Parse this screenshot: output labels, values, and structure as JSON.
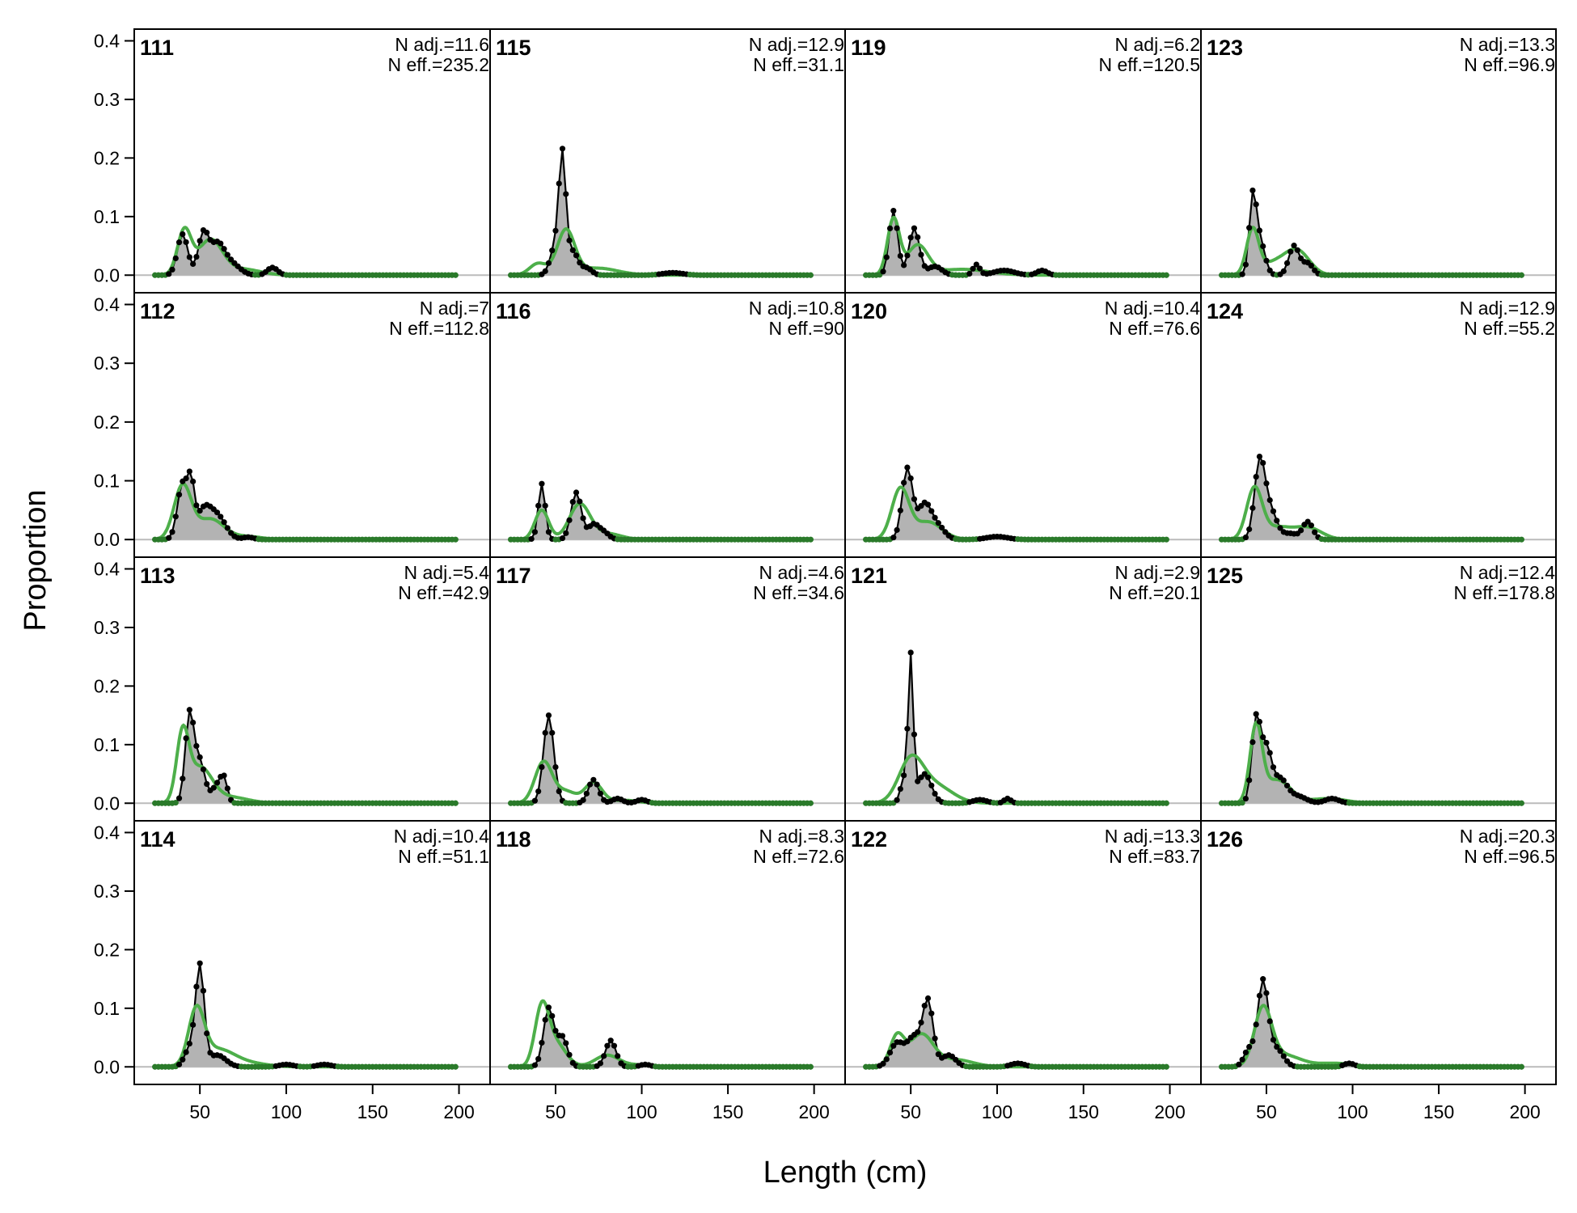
{
  "chart_data": {
    "type": "area",
    "xlabel": "Length (cm)",
    "ylabel": "Proportion",
    "xlim": [
      12,
      218
    ],
    "ylim": [
      -0.03,
      0.42
    ],
    "xticks": [
      50,
      100,
      150,
      200
    ],
    "yticks": [
      0.0,
      0.1,
      0.2,
      0.3,
      0.4
    ],
    "ytick_labels": [
      "0.0",
      "0.1",
      "0.2",
      "0.3",
      "0.4"
    ],
    "xtick_labels": [
      "50",
      "100",
      "150",
      "200"
    ],
    "layout": "4 rows x 4 columns, filled column-wise",
    "colors": {
      "observed_fill": "#b3b3b3",
      "observed_line": "#000000",
      "expected_line": "#4daf4a",
      "zero_line": "#bbbbbb",
      "green_points": "#2a7a2a"
    },
    "length_bins": [
      24,
      26,
      28,
      30,
      32,
      34,
      36,
      38,
      40,
      42,
      44,
      46,
      48,
      50,
      52,
      54,
      56,
      58,
      60,
      62,
      64,
      66,
      68,
      70,
      72,
      74,
      76,
      78,
      80,
      82,
      84,
      86,
      88,
      90,
      92,
      94,
      96,
      98,
      100,
      102,
      104,
      106,
      108,
      110,
      112,
      114,
      116,
      118,
      120,
      122,
      124,
      126,
      128,
      130,
      132,
      134,
      136,
      138,
      140,
      142,
      144,
      146,
      148,
      150,
      152,
      154,
      156,
      158,
      160,
      162,
      164,
      166,
      168,
      170,
      172,
      174,
      176,
      178,
      180,
      182,
      184,
      186,
      188,
      190,
      192,
      194,
      196,
      198
    ],
    "panels": [
      {
        "label": "111",
        "n_adj": "N adj.=11.6",
        "n_eff": "N eff.=235.2",
        "obs_peaks": [
          [
            40,
            0.07,
            3
          ],
          [
            52,
            0.07,
            3
          ],
          [
            60,
            0.05,
            4
          ],
          [
            68,
            0.02,
            5
          ],
          [
            92,
            0.013,
            3
          ]
        ],
        "exp_peaks": [
          [
            41,
            0.075,
            4
          ],
          [
            56,
            0.06,
            7
          ],
          [
            75,
            0.01,
            10
          ]
        ]
      },
      {
        "label": "112",
        "n_adj": "N adj.=7",
        "n_eff": "N eff.=112.8",
        "obs_peaks": [
          [
            40,
            0.095,
            3
          ],
          [
            45,
            0.08,
            2
          ],
          [
            52,
            0.045,
            4
          ],
          [
            60,
            0.04,
            5
          ],
          [
            78,
            0.004,
            3
          ]
        ],
        "exp_peaks": [
          [
            40,
            0.09,
            5
          ],
          [
            56,
            0.035,
            8
          ],
          [
            78,
            0.005,
            8
          ]
        ]
      },
      {
        "label": "113",
        "n_adj": "N adj.=5.4",
        "n_eff": "N eff.=42.9",
        "obs_peaks": [
          [
            44,
            0.15,
            2.5
          ],
          [
            50,
            0.07,
            3
          ],
          [
            60,
            0.03,
            3
          ],
          [
            64,
            0.035,
            2
          ]
        ],
        "exp_peaks": [
          [
            40,
            0.11,
            3.5
          ],
          [
            50,
            0.06,
            7
          ],
          [
            68,
            0.01,
            10
          ]
        ]
      },
      {
        "label": "114",
        "n_adj": "N adj.=10.4",
        "n_eff": "N eff.=51.1",
        "obs_peaks": [
          [
            50,
            0.17,
            2.5
          ],
          [
            44,
            0.03,
            3
          ],
          [
            60,
            0.02,
            5
          ],
          [
            100,
            0.004,
            4
          ],
          [
            122,
            0.004,
            4
          ]
        ],
        "exp_peaks": [
          [
            48,
            0.09,
            4.5
          ],
          [
            60,
            0.03,
            10
          ],
          [
            80,
            0.005,
            10
          ]
        ]
      },
      {
        "label": "115",
        "n_adj": "N adj.=12.9",
        "n_eff": "N eff.=31.1",
        "obs_peaks": [
          [
            54,
            0.19,
            2
          ],
          [
            50,
            0.05,
            3
          ],
          [
            60,
            0.04,
            3
          ],
          [
            68,
            0.012,
            3
          ],
          [
            118,
            0.004,
            6
          ]
        ],
        "exp_peaks": [
          [
            40,
            0.02,
            5
          ],
          [
            56,
            0.075,
            5
          ],
          [
            74,
            0.012,
            12
          ]
        ]
      },
      {
        "label": "116",
        "n_adj": "N adj.=10.8",
        "n_eff": "N eff.=90",
        "obs_peaks": [
          [
            42,
            0.095,
            2
          ],
          [
            62,
            0.08,
            3
          ],
          [
            72,
            0.025,
            3
          ],
          [
            78,
            0.012,
            3
          ]
        ],
        "exp_peaks": [
          [
            42,
            0.05,
            4
          ],
          [
            64,
            0.06,
            6
          ],
          [
            80,
            0.01,
            8
          ]
        ]
      },
      {
        "label": "117",
        "n_adj": "N adj.=4.6",
        "n_eff": "N eff.=34.6",
        "obs_peaks": [
          [
            46,
            0.15,
            3
          ],
          [
            72,
            0.04,
            3
          ],
          [
            86,
            0.008,
            3
          ],
          [
            100,
            0.006,
            3
          ]
        ],
        "exp_peaks": [
          [
            43,
            0.07,
            5
          ],
          [
            56,
            0.02,
            6
          ],
          [
            72,
            0.035,
            5
          ],
          [
            90,
            0.005,
            8
          ]
        ]
      },
      {
        "label": "118",
        "n_adj": "N adj.=8.3",
        "n_eff": "N eff.=72.6",
        "obs_peaks": [
          [
            46,
            0.1,
            3
          ],
          [
            54,
            0.05,
            3
          ],
          [
            82,
            0.045,
            3
          ],
          [
            102,
            0.004,
            3
          ]
        ],
        "exp_peaks": [
          [
            42,
            0.095,
            4
          ],
          [
            50,
            0.04,
            6
          ],
          [
            80,
            0.02,
            7
          ],
          [
            98,
            0.003,
            6
          ]
        ]
      },
      {
        "label": "119",
        "n_adj": "N adj.=6.2",
        "n_eff": "N eff.=120.5",
        "obs_peaks": [
          [
            40,
            0.11,
            2.5
          ],
          [
            52,
            0.08,
            3
          ],
          [
            64,
            0.015,
            4
          ],
          [
            88,
            0.018,
            2
          ],
          [
            104,
            0.008,
            6
          ],
          [
            126,
            0.008,
            3
          ]
        ],
        "exp_peaks": [
          [
            40,
            0.095,
            3.5
          ],
          [
            54,
            0.05,
            6
          ],
          [
            80,
            0.01,
            15
          ]
        ]
      },
      {
        "label": "120",
        "n_adj": "N adj.=10.4",
        "n_eff": "N eff.=76.6",
        "obs_peaks": [
          [
            48,
            0.12,
            3
          ],
          [
            58,
            0.06,
            4
          ],
          [
            66,
            0.02,
            4
          ],
          [
            100,
            0.005,
            6
          ]
        ],
        "exp_peaks": [
          [
            44,
            0.085,
            5
          ],
          [
            60,
            0.03,
            8
          ],
          [
            100,
            0.006,
            8
          ]
        ]
      },
      {
        "label": "121",
        "n_adj": "N adj.=2.9",
        "n_eff": "N eff.=20.1",
        "obs_peaks": [
          [
            50,
            0.245,
            1.5
          ],
          [
            46,
            0.04,
            2
          ],
          [
            58,
            0.05,
            4
          ],
          [
            90,
            0.006,
            4
          ],
          [
            106,
            0.008,
            2
          ]
        ],
        "exp_peaks": [
          [
            50,
            0.07,
            7
          ],
          [
            64,
            0.03,
            10
          ]
        ]
      },
      {
        "label": "122",
        "n_adj": "N adj.=13.3",
        "n_eff": "N eff.=83.7",
        "obs_peaks": [
          [
            42,
            0.04,
            4
          ],
          [
            60,
            0.11,
            3
          ],
          [
            52,
            0.05,
            4
          ],
          [
            72,
            0.02,
            4
          ],
          [
            112,
            0.006,
            4
          ]
        ],
        "exp_peaks": [
          [
            42,
            0.05,
            4
          ],
          [
            56,
            0.055,
            7
          ],
          [
            76,
            0.012,
            10
          ]
        ]
      },
      {
        "label": "123",
        "n_adj": "N adj.=13.3",
        "n_eff": "N eff.=96.9",
        "obs_peaks": [
          [
            42,
            0.12,
            2
          ],
          [
            46,
            0.06,
            3
          ],
          [
            66,
            0.05,
            3
          ],
          [
            74,
            0.02,
            3
          ]
        ],
        "exp_peaks": [
          [
            42,
            0.075,
            3.5
          ],
          [
            54,
            0.02,
            8
          ],
          [
            68,
            0.04,
            7
          ]
        ]
      },
      {
        "label": "124",
        "n_adj": "N adj.=12.9",
        "n_eff": "N eff.=55.2",
        "obs_peaks": [
          [
            46,
            0.125,
            3
          ],
          [
            52,
            0.05,
            4
          ],
          [
            74,
            0.03,
            3
          ],
          [
            64,
            0.01,
            4
          ]
        ],
        "exp_peaks": [
          [
            43,
            0.085,
            4.5
          ],
          [
            56,
            0.02,
            8
          ],
          [
            74,
            0.02,
            8
          ]
        ]
      },
      {
        "label": "125",
        "n_adj": "N adj.=12.4",
        "n_eff": "N eff.=178.8",
        "obs_peaks": [
          [
            44,
            0.14,
            2.5
          ],
          [
            50,
            0.09,
            3
          ],
          [
            58,
            0.04,
            4
          ],
          [
            68,
            0.012,
            5
          ],
          [
            88,
            0.008,
            4
          ]
        ],
        "exp_peaks": [
          [
            44,
            0.125,
            3.5
          ],
          [
            56,
            0.04,
            8
          ],
          [
            86,
            0.008,
            10
          ]
        ]
      },
      {
        "label": "126",
        "n_adj": "N adj.=20.3",
        "n_eff": "N eff.=96.5",
        "obs_peaks": [
          [
            48,
            0.145,
            3
          ],
          [
            40,
            0.03,
            3
          ],
          [
            56,
            0.03,
            4
          ],
          [
            98,
            0.006,
            3
          ]
        ],
        "exp_peaks": [
          [
            48,
            0.095,
            5
          ],
          [
            60,
            0.02,
            10
          ],
          [
            90,
            0.006,
            10
          ]
        ]
      }
    ]
  }
}
